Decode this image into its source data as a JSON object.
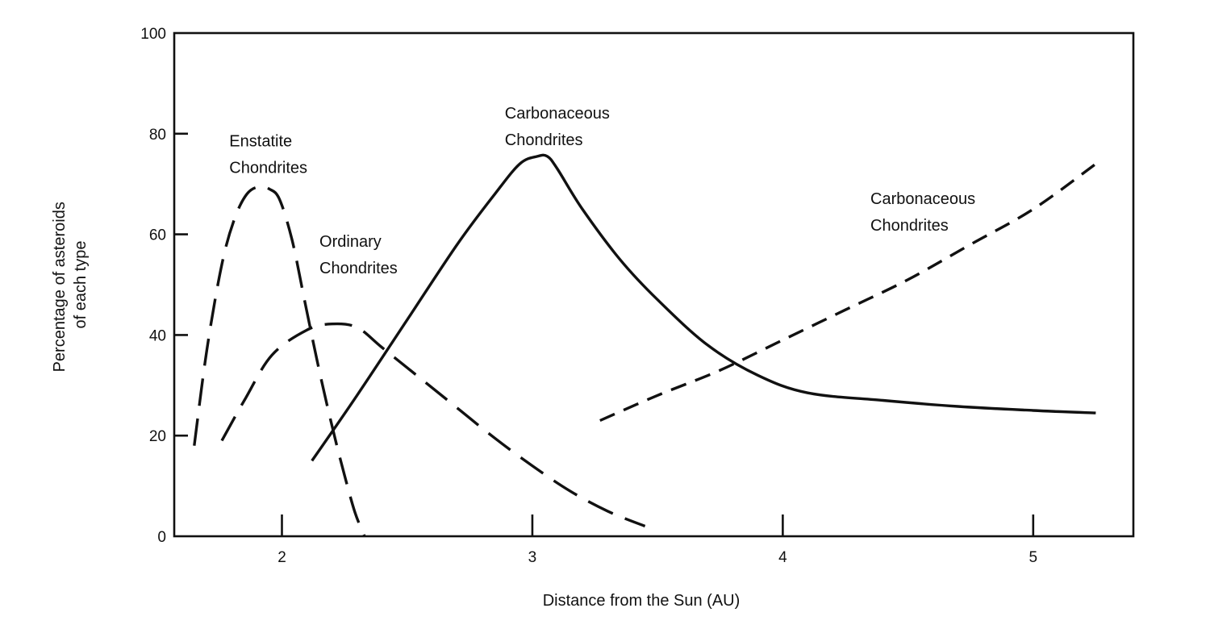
{
  "chart_data": {
    "type": "line",
    "title": "",
    "xlabel": "Distance from the Sun (AU)",
    "ylabel_lines": [
      "Percentage of asteroids",
      "of each type"
    ],
    "xlim": [
      1.57,
      5.4
    ],
    "ylim": [
      0,
      100
    ],
    "xticks": [
      2,
      3,
      4,
      5
    ],
    "yticks": [
      0,
      20,
      40,
      60,
      80,
      100
    ],
    "grid": false,
    "legend": "none (curves labeled directly)",
    "series": [
      {
        "name": "Enstatite Chondrites",
        "style": "long-dash",
        "x": [
          1.65,
          1.7,
          1.76,
          1.81,
          1.86,
          1.91,
          1.95,
          1.99,
          2.04,
          2.09,
          2.14,
          2.19,
          2.24,
          2.29,
          2.33
        ],
        "y": [
          18,
          37,
          54,
          63,
          68,
          69.5,
          69,
          67,
          59,
          47,
          35,
          24,
          14,
          5,
          0
        ]
      },
      {
        "name": "Ordinary Chondrites",
        "style": "long-dash",
        "x": [
          1.76,
          1.85,
          1.96,
          2.1,
          2.2,
          2.3,
          2.4,
          2.55,
          2.7,
          2.85,
          3.0,
          3.15,
          3.3,
          3.45
        ],
        "y": [
          19,
          27,
          36,
          41,
          42.2,
          41.5,
          37.5,
          31.5,
          25.5,
          19.5,
          14,
          9,
          5,
          2
        ]
      },
      {
        "name": "Carbonaceous Chondrites",
        "style": "solid",
        "x": [
          2.12,
          2.3,
          2.5,
          2.7,
          2.85,
          2.95,
          3.02,
          3.06,
          3.1,
          3.2,
          3.35,
          3.5,
          3.7,
          3.9,
          4.1,
          4.4,
          4.7,
          5.0,
          5.25
        ],
        "y": [
          15,
          28,
          43,
          58,
          68,
          74,
          75.5,
          75.5,
          73,
          65,
          55,
          47,
          38,
          32,
          28.5,
          27,
          25.8,
          25,
          24.5
        ]
      },
      {
        "name": "Carbonaceous Chondrites",
        "style": "short-dash",
        "x": [
          3.27,
          3.5,
          3.75,
          4.0,
          4.25,
          4.5,
          4.75,
          5.0,
          5.25
        ],
        "y": [
          23,
          28,
          33,
          39,
          45,
          51,
          58,
          65,
          74
        ]
      }
    ],
    "annotations": [
      {
        "lines": [
          "Enstatite",
          "Chondrites"
        ],
        "x": 1.79,
        "y": 77.5
      },
      {
        "lines": [
          "Ordinary",
          "Chondrites"
        ],
        "x": 2.15,
        "y": 57.5
      },
      {
        "lines": [
          "Carbonaceous",
          "Chondrites"
        ],
        "x": 2.89,
        "y": 83
      },
      {
        "lines": [
          "Carbonaceous",
          "Chondrites"
        ],
        "x": 4.35,
        "y": 66
      }
    ]
  }
}
